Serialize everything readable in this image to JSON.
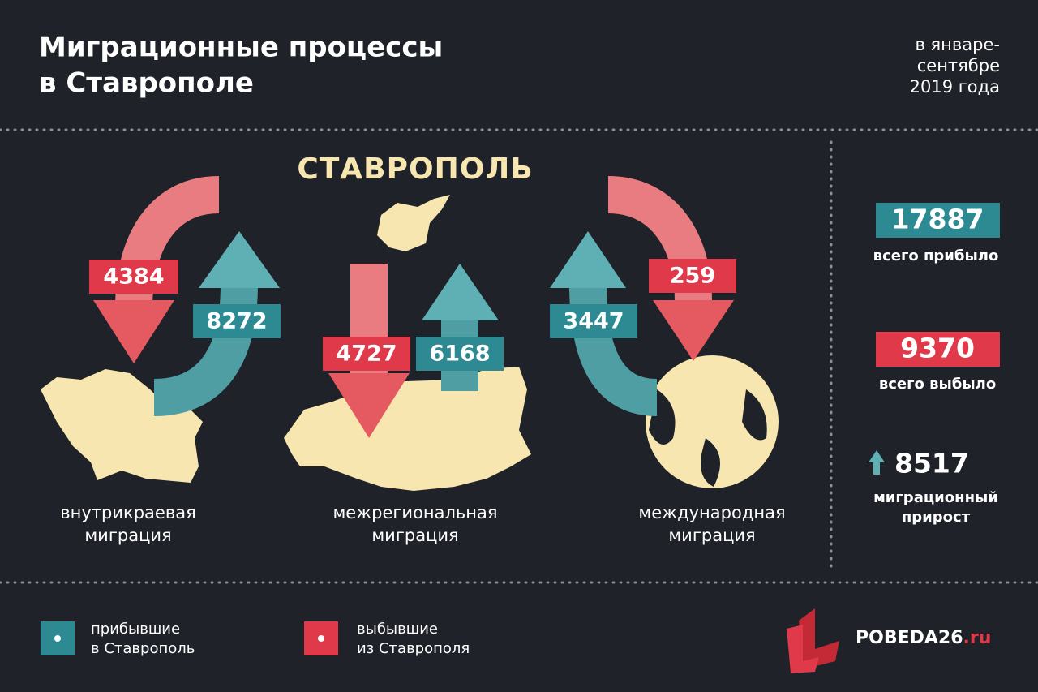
{
  "header": {
    "title_lines": [
      "Миграционные процессы",
      "в Ставрополе"
    ],
    "period_lines": [
      "в январе-",
      "сентябре",
      "2019 года"
    ]
  },
  "city": "СТАВРОПОЛЬ",
  "groups": [
    {
      "label_lines": [
        "внутрикраевая",
        "миграция"
      ],
      "departed": 4384,
      "arrived": 8272
    },
    {
      "label_lines": [
        "межрегиональная",
        "миграция"
      ],
      "departed": 4727,
      "arrived": 6168
    },
    {
      "label_lines": [
        "международная",
        "миграция"
      ],
      "departed": 259,
      "arrived": 3447
    }
  ],
  "totals": [
    {
      "value": 17887,
      "label_lines": [
        "всего прибыло"
      ]
    },
    {
      "value": 9370,
      "label_lines": [
        "всего выбыло"
      ]
    },
    {
      "value": 8517,
      "label_lines": [
        "миграционный",
        "прирост"
      ]
    }
  ],
  "legend": [
    {
      "lines": [
        "прибывшие",
        "в Ставрополь"
      ]
    },
    {
      "lines": [
        "выбывшие",
        "из Ставрополя"
      ]
    }
  ],
  "brand": {
    "name": "POBEDA26",
    "tld": ".ru"
  }
}
